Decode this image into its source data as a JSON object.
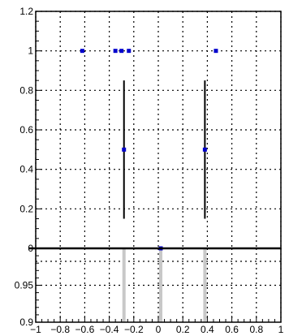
{
  "chart_data": [
    {
      "type": "scatter",
      "panel": "top",
      "xlim": [
        -1,
        1
      ],
      "ylim": [
        0,
        1.2
      ],
      "grid": true,
      "grid_style": "dotted",
      "marker_color": "#0000cc",
      "points": [
        {
          "x": -0.62,
          "y": 1.0
        },
        {
          "x": -0.35,
          "y": 1.0
        },
        {
          "x": -0.3,
          "y": 1.0
        },
        {
          "x": -0.24,
          "y": 1.0
        },
        {
          "x": 0.47,
          "y": 1.0
        },
        {
          "x": -0.28,
          "y": 0.5
        },
        {
          "x": 0.38,
          "y": 0.5
        }
      ],
      "error_bars": [
        {
          "x": -0.28,
          "y_low": 0.15,
          "y_high": 0.85
        },
        {
          "x": 0.38,
          "y_low": 0.15,
          "y_high": 0.85
        }
      ],
      "yticks": [
        "0",
        "0.2",
        "0.4",
        "0.6",
        "0.8",
        "1",
        "1.2"
      ]
    },
    {
      "type": "bar",
      "panel": "bottom",
      "xlim": [
        -1,
        1
      ],
      "ylim": [
        0.9,
        1.0
      ],
      "grid": true,
      "grid_style": "dotted",
      "bar_color": "#c8c8c8",
      "marker_color": "#0000cc",
      "bars": [
        {
          "x": -0.28,
          "value": 1.0
        },
        {
          "x": 0.02,
          "value": 1.0
        },
        {
          "x": 0.38,
          "value": 1.0
        }
      ],
      "points": [
        {
          "x": 0.02,
          "y": 1.0
        }
      ],
      "xticks": [
        "−1",
        "−0.8",
        "−0.6",
        "−0.4",
        "−0.2",
        "0",
        "0.2",
        "0.4",
        "0.6",
        "0.8",
        "1"
      ],
      "yticks": [
        "0.9",
        "0.95"
      ]
    }
  ]
}
